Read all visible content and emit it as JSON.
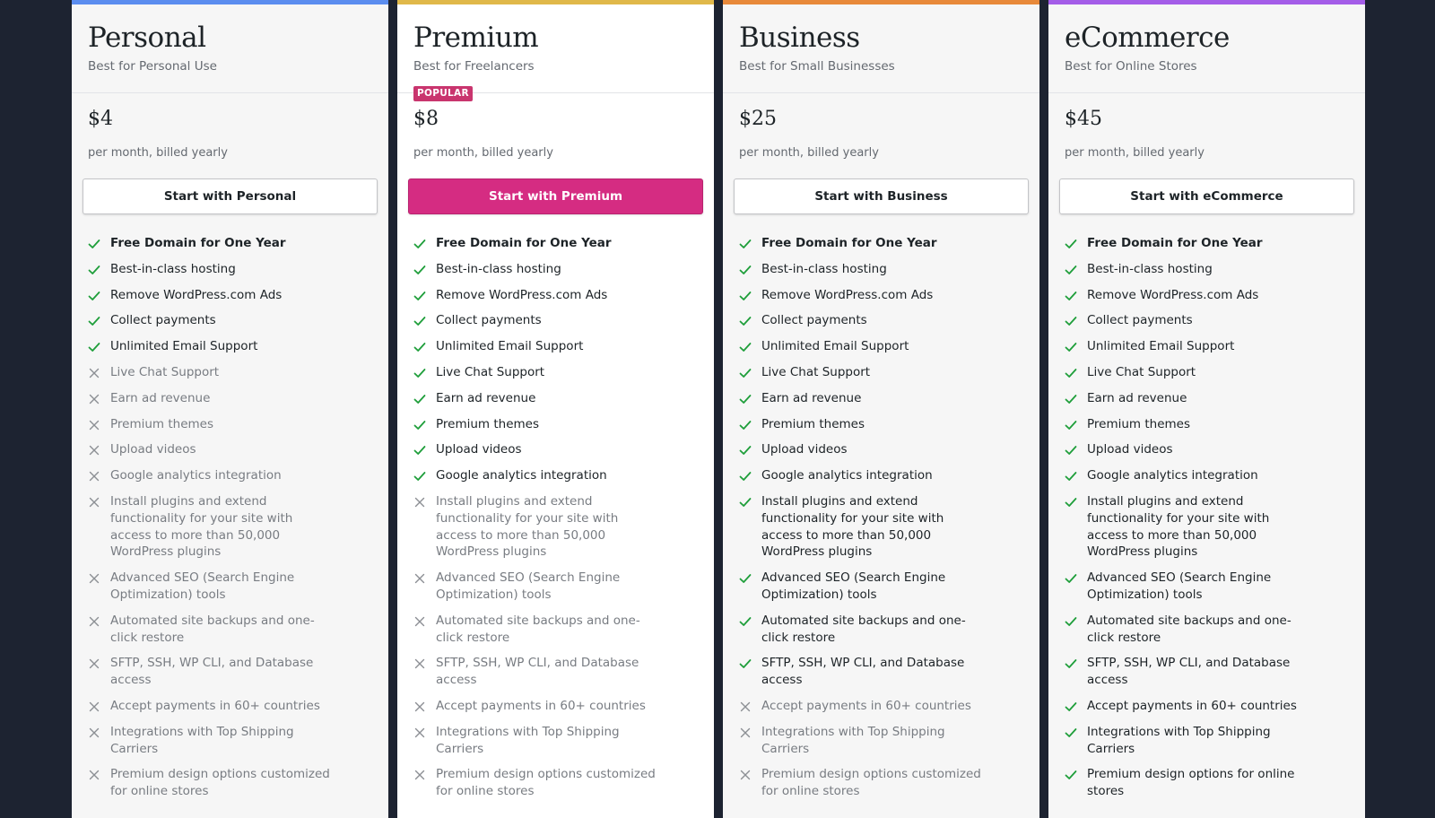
{
  "colors": {
    "check": "#1e9e3a",
    "cross": "#8c8f94"
  },
  "feature_labels": [
    "Free Domain for One Year",
    "Best-in-class hosting",
    "Remove WordPress.com Ads",
    "Collect payments",
    "Unlimited Email Support",
    "Live Chat Support",
    "Earn ad revenue",
    "Premium themes",
    "Upload videos",
    "Google analytics integration",
    "Install plugins and extend functionality for your site with access to more than 50,000 WordPress plugins",
    "Advanced SEO (Search Engine Optimization) tools",
    "Automated site backups and one-click restore",
    "SFTP, SSH, WP CLI, and Database access",
    "Accept payments in 60+ countries",
    "Integrations with Top Shipping Carriers",
    "Premium design options customized for online stores"
  ],
  "plans": [
    {
      "name": "Personal",
      "tagline": "Best for Personal Use",
      "accent": "#5b8def",
      "featured": false,
      "badge": "",
      "price": "$4",
      "billing": "per month, billed yearly",
      "cta_label": "Start with Personal",
      "features": [
        {
          "label": "Free Domain for One Year",
          "included": true,
          "icon": "check-icon"
        },
        {
          "label": "Best-in-class hosting",
          "included": true,
          "icon": "check-icon"
        },
        {
          "label": "Remove WordPress.com Ads",
          "included": true,
          "icon": "check-icon"
        },
        {
          "label": "Collect payments",
          "included": true,
          "icon": "check-icon"
        },
        {
          "label": "Unlimited Email Support",
          "included": true,
          "icon": "check-icon"
        },
        {
          "label": "Live Chat Support",
          "included": false,
          "icon": "cross-icon"
        },
        {
          "label": "Earn ad revenue",
          "included": false,
          "icon": "cross-icon"
        },
        {
          "label": "Premium themes",
          "included": false,
          "icon": "cross-icon"
        },
        {
          "label": "Upload videos",
          "included": false,
          "icon": "cross-icon"
        },
        {
          "label": "Google analytics integration",
          "included": false,
          "icon": "cross-icon"
        },
        {
          "label": "Install plugins and extend functionality for your site with access to more than 50,000 WordPress plugins",
          "included": false,
          "icon": "cross-icon"
        },
        {
          "label": "Advanced SEO (Search Engine Optimization) tools",
          "included": false,
          "icon": "cross-icon"
        },
        {
          "label": "Automated site backups and one-click restore",
          "included": false,
          "icon": "cross-icon"
        },
        {
          "label": "SFTP, SSH, WP CLI, and Database access",
          "included": false,
          "icon": "cross-icon"
        },
        {
          "label": "Accept payments in 60+ countries",
          "included": false,
          "icon": "cross-icon"
        },
        {
          "label": "Integrations with Top Shipping Carriers",
          "included": false,
          "icon": "cross-icon"
        },
        {
          "label": "Premium design options customized for online stores",
          "included": false,
          "icon": "cross-icon"
        }
      ]
    },
    {
      "name": "Premium",
      "tagline": "Best for Freelancers",
      "accent": "#e0b84a",
      "featured": true,
      "badge": "POPULAR",
      "price": "$8",
      "billing": "per month, billed yearly",
      "cta_label": "Start with Premium",
      "features": [
        {
          "label": "Free Domain for One Year",
          "included": true,
          "icon": "check-icon"
        },
        {
          "label": "Best-in-class hosting",
          "included": true,
          "icon": "check-icon"
        },
        {
          "label": "Remove WordPress.com Ads",
          "included": true,
          "icon": "check-icon"
        },
        {
          "label": "Collect payments",
          "included": true,
          "icon": "check-icon"
        },
        {
          "label": "Unlimited Email Support",
          "included": true,
          "icon": "check-icon"
        },
        {
          "label": "Live Chat Support",
          "included": true,
          "icon": "check-icon"
        },
        {
          "label": "Earn ad revenue",
          "included": true,
          "icon": "check-icon"
        },
        {
          "label": "Premium themes",
          "included": true,
          "icon": "check-icon"
        },
        {
          "label": "Upload videos",
          "included": true,
          "icon": "check-icon"
        },
        {
          "label": "Google analytics integration",
          "included": true,
          "icon": "check-icon"
        },
        {
          "label": "Install plugins and extend functionality for your site with access to more than 50,000 WordPress plugins",
          "included": false,
          "icon": "cross-icon"
        },
        {
          "label": "Advanced SEO (Search Engine Optimization) tools",
          "included": false,
          "icon": "cross-icon"
        },
        {
          "label": "Automated site backups and one-click restore",
          "included": false,
          "icon": "cross-icon"
        },
        {
          "label": "SFTP, SSH, WP CLI, and Database access",
          "included": false,
          "icon": "cross-icon"
        },
        {
          "label": "Accept payments in 60+ countries",
          "included": false,
          "icon": "cross-icon"
        },
        {
          "label": "Integrations with Top Shipping Carriers",
          "included": false,
          "icon": "cross-icon"
        },
        {
          "label": "Premium design options customized for online stores",
          "included": false,
          "icon": "cross-icon"
        }
      ]
    },
    {
      "name": "Business",
      "tagline": "Best for Small Businesses",
      "accent": "#e8893a",
      "featured": false,
      "badge": "",
      "price": "$25",
      "billing": "per month, billed yearly",
      "cta_label": "Start with Business",
      "features": [
        {
          "label": "Free Domain for One Year",
          "included": true,
          "icon": "check-icon"
        },
        {
          "label": "Best-in-class hosting",
          "included": true,
          "icon": "check-icon"
        },
        {
          "label": "Remove WordPress.com Ads",
          "included": true,
          "icon": "check-icon"
        },
        {
          "label": "Collect payments",
          "included": true,
          "icon": "check-icon"
        },
        {
          "label": "Unlimited Email Support",
          "included": true,
          "icon": "check-icon"
        },
        {
          "label": "Live Chat Support",
          "included": true,
          "icon": "check-icon"
        },
        {
          "label": "Earn ad revenue",
          "included": true,
          "icon": "check-icon"
        },
        {
          "label": "Premium themes",
          "included": true,
          "icon": "check-icon"
        },
        {
          "label": "Upload videos",
          "included": true,
          "icon": "check-icon"
        },
        {
          "label": "Google analytics integration",
          "included": true,
          "icon": "check-icon"
        },
        {
          "label": "Install plugins and extend functionality for your site with access to more than 50,000 WordPress plugins",
          "included": true,
          "icon": "check-icon"
        },
        {
          "label": "Advanced SEO (Search Engine Optimization) tools",
          "included": true,
          "icon": "check-icon"
        },
        {
          "label": "Automated site backups and one-click restore",
          "included": true,
          "icon": "check-icon"
        },
        {
          "label": "SFTP, SSH, WP CLI, and Database access",
          "included": true,
          "icon": "check-icon"
        },
        {
          "label": "Accept payments in 60+ countries",
          "included": false,
          "icon": "cross-icon"
        },
        {
          "label": "Integrations with Top Shipping Carriers",
          "included": false,
          "icon": "cross-icon"
        },
        {
          "label": "Premium design options customized for online stores",
          "included": false,
          "icon": "cross-icon"
        }
      ]
    },
    {
      "name": "eCommerce",
      "tagline": "Best for Online Stores",
      "accent": "#a45de8",
      "featured": false,
      "badge": "",
      "price": "$45",
      "billing": "per month, billed yearly",
      "cta_label": "Start with eCommerce",
      "features": [
        {
          "label": "Free Domain for One Year",
          "included": true,
          "icon": "check-icon"
        },
        {
          "label": "Best-in-class hosting",
          "included": true,
          "icon": "check-icon"
        },
        {
          "label": "Remove WordPress.com Ads",
          "included": true,
          "icon": "check-icon"
        },
        {
          "label": "Collect payments",
          "included": true,
          "icon": "check-icon"
        },
        {
          "label": "Unlimited Email Support",
          "included": true,
          "icon": "check-icon"
        },
        {
          "label": "Live Chat Support",
          "included": true,
          "icon": "check-icon"
        },
        {
          "label": "Earn ad revenue",
          "included": true,
          "icon": "check-icon"
        },
        {
          "label": "Premium themes",
          "included": true,
          "icon": "check-icon"
        },
        {
          "label": "Upload videos",
          "included": true,
          "icon": "check-icon"
        },
        {
          "label": "Google analytics integration",
          "included": true,
          "icon": "check-icon"
        },
        {
          "label": "Install plugins and extend functionality for your site with access to more than 50,000 WordPress plugins",
          "included": true,
          "icon": "check-icon"
        },
        {
          "label": "Advanced SEO (Search Engine Optimization) tools",
          "included": true,
          "icon": "check-icon"
        },
        {
          "label": "Automated site backups and one-click restore",
          "included": true,
          "icon": "check-icon"
        },
        {
          "label": "SFTP, SSH, WP CLI, and Database access",
          "included": true,
          "icon": "check-icon"
        },
        {
          "label": "Accept payments in 60+ countries",
          "included": true,
          "icon": "check-icon"
        },
        {
          "label": "Integrations with Top Shipping Carriers",
          "included": true,
          "icon": "check-icon"
        },
        {
          "label": "Premium design options for online stores",
          "included": true,
          "icon": "check-icon"
        }
      ]
    }
  ]
}
